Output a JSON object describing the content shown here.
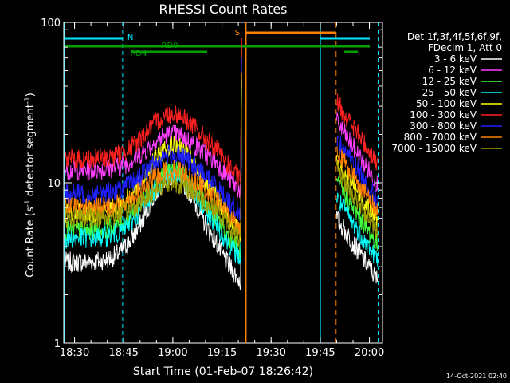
{
  "chart_data": {
    "type": "line",
    "title": "RHESSI Count Rates",
    "xlabel": "Start Time (01-Feb-07 18:26:42)",
    "ylabel_main": "Count Rate (s",
    "ylabel_sup1": "-1",
    "ylabel_mid": " detector segment",
    "ylabel_sup2": "-1",
    "ylabel_end": ")",
    "y_scale": "log",
    "ylim": [
      1,
      100
    ],
    "xlim": [
      "18:26:42",
      "20:04:00"
    ],
    "x_ticks": [
      "18:30",
      "18:45",
      "19:00",
      "19:15",
      "19:30",
      "19:45",
      "20:00"
    ],
    "y_ticks": [
      "1",
      "10",
      "100"
    ],
    "timestamp": "14-Oct-2021 02:40",
    "legend_header": [
      "Det 1f,3f,4f,5f,6f,9f,",
      "FDecim 1, Att 0"
    ],
    "series": [
      {
        "name": "3 - 6 keV",
        "color": "#ffffff",
        "pre": 3.2,
        "peak": 11.0,
        "post": 6.0
      },
      {
        "name": "6 - 12 keV",
        "color": "#ff40ff",
        "pre": 12.0,
        "peak": 20.0,
        "post": 24.0
      },
      {
        "name": "12 - 25 keV",
        "color": "#40ff40",
        "pre": 5.0,
        "peak": 12.0,
        "post": 10.0
      },
      {
        "name": "25 - 50 keV",
        "color": "#00ffff",
        "pre": 4.5,
        "peak": 11.0,
        "post": 8.0
      },
      {
        "name": "50 - 100 keV",
        "color": "#ffff00",
        "pre": 6.5,
        "peak": 17.0,
        "post": 14.0
      },
      {
        "name": "100 - 300 keV",
        "color": "#ff2020",
        "pre": 14.0,
        "peak": 27.0,
        "post": 32.0
      },
      {
        "name": "300 - 800 keV",
        "color": "#2020ff",
        "pre": 8.5,
        "peak": 15.0,
        "post": 19.0
      },
      {
        "name": "800 - 7000 keV",
        "color": "#ff8000",
        "pre": 7.0,
        "peak": 12.0,
        "post": 16.0
      },
      {
        "name": "7000 - 15000 keV",
        "color": "#a0a000",
        "pre": 6.0,
        "peak": 10.0,
        "post": 12.0
      }
    ],
    "annotations": {
      "n_label": "N",
      "s_label": "S",
      "rd0_label": "RD0",
      "rd4_label": "RD4"
    }
  }
}
